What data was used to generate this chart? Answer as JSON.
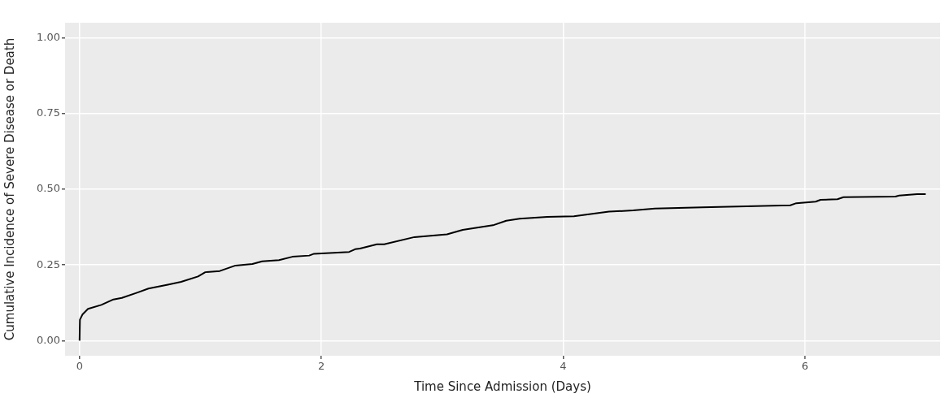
{
  "chart_data": {
    "type": "line",
    "xlabel": "Time Since Admission (Days)",
    "ylabel": "Cumulative Incidence of Severe Disease or Death",
    "x": [
      0,
      0.003,
      0.025,
      0.07,
      0.18,
      0.28,
      0.35,
      0.48,
      0.57,
      0.73,
      0.84,
      0.98,
      1.04,
      1.16,
      1.29,
      1.43,
      1.51,
      1.65,
      1.76,
      1.9,
      1.94,
      2.23,
      2.28,
      2.32,
      2.46,
      2.52,
      2.77,
      3.04,
      3.17,
      3.42,
      3.53,
      3.64,
      3.87,
      4.09,
      4.38,
      4.58,
      4.76,
      5.15,
      5.59,
      5.88,
      5.93,
      6.09,
      6.13,
      6.27,
      6.32,
      6.75,
      6.78,
      6.93,
      7.0
    ],
    "series": [
      {
        "color": "#000000",
        "values": [
          0,
          0.069,
          0.087,
          0.105,
          0.118,
          0.136,
          0.141,
          0.159,
          0.172,
          0.185,
          0.194,
          0.212,
          0.226,
          0.23,
          0.248,
          0.253,
          0.262,
          0.266,
          0.277,
          0.281,
          0.287,
          0.293,
          0.302,
          0.304,
          0.318,
          0.318,
          0.342,
          0.351,
          0.366,
          0.381,
          0.396,
          0.403,
          0.409,
          0.411,
          0.426,
          0.43,
          0.436,
          0.44,
          0.444,
          0.447,
          0.454,
          0.459,
          0.465,
          0.467,
          0.474,
          0.476,
          0.479,
          0.484,
          0.484
        ]
      }
    ],
    "xlim": [
      -0.12,
      7.12
    ],
    "xticks": [
      0,
      2,
      4,
      6
    ],
    "ylim": [
      -0.05,
      1.05
    ],
    "yticks": [
      {
        "value": 0,
        "label": "0.00"
      },
      {
        "value": 0.25,
        "label": "0.25"
      },
      {
        "value": 0.5,
        "label": "0.50"
      },
      {
        "value": 0.75,
        "label": "0.75"
      },
      {
        "value": 1,
        "label": "1.00"
      }
    ],
    "grid": true,
    "legend": false
  }
}
